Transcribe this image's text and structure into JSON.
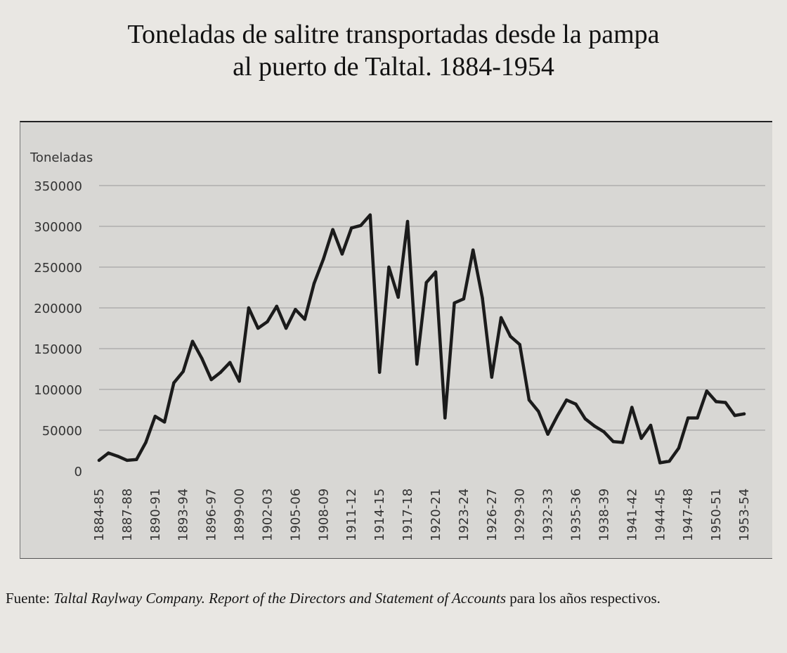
{
  "title": {
    "line1": "Toneladas de salitre transportadas desde la pampa",
    "line2": "al puerto de Taltal. 1884-1954"
  },
  "source": {
    "prefix": "Fuente:",
    "italic": "Taltal Raylway Company. Report of the Directors and Statement of Accounts",
    "suffix": "para los años respectivos."
  },
  "colors": {
    "line": "#1b1b1b",
    "plot_bg": "#d8d7d4",
    "grid": "#9a9a9a"
  },
  "chart_data": {
    "type": "line",
    "title": "Toneladas de salitre transportadas desde la pampa al puerto de Taltal. 1884-1954",
    "ylabel": "Toneladas",
    "xlabel": "",
    "ylim": [
      0,
      350000
    ],
    "yticks": [
      0,
      50000,
      100000,
      150000,
      200000,
      250000,
      300000,
      350000
    ],
    "ytick_labels": [
      "0",
      "50000",
      "100000",
      "150000",
      "200000",
      "250000",
      "300000",
      "350000"
    ],
    "grid": true,
    "xtick_labels": [
      "1884-85",
      "1887-88",
      "1890-91",
      "1893-94",
      "1896-97",
      "1899-00",
      "1902-03",
      "1905-06",
      "1908-09",
      "1911-12",
      "1914-15",
      "1917-18",
      "1920-21",
      "1923-24",
      "1926-27",
      "1929-30",
      "1932-33",
      "1935-36",
      "1938-39",
      "1941-42",
      "1944-45",
      "1947-48",
      "1950-51",
      "1953-54"
    ],
    "xtick_every": 3,
    "categories": [
      "1884-85",
      "1885-86",
      "1886-87",
      "1887-88",
      "1888-89",
      "1889-90",
      "1890-91",
      "1891-92",
      "1892-93",
      "1893-94",
      "1894-95",
      "1895-96",
      "1896-97",
      "1897-98",
      "1898-99",
      "1899-00",
      "1900-01",
      "1901-02",
      "1902-03",
      "1903-04",
      "1904-05",
      "1905-06",
      "1906-07",
      "1907-08",
      "1908-09",
      "1909-10",
      "1910-11",
      "1911-12",
      "1912-13",
      "1913-14",
      "1914-15",
      "1915-16",
      "1916-17",
      "1917-18",
      "1918-19",
      "1919-20",
      "1920-21",
      "1921-22",
      "1922-23",
      "1923-24",
      "1924-25",
      "1925-26",
      "1926-27",
      "1927-28",
      "1928-29",
      "1929-30",
      "1930-31",
      "1931-32",
      "1932-33",
      "1933-34",
      "1934-35",
      "1935-36",
      "1936-37",
      "1937-38",
      "1938-39",
      "1939-40",
      "1940-41",
      "1941-42",
      "1942-43",
      "1943-44",
      "1944-45",
      "1945-46",
      "1946-47",
      "1947-48",
      "1948-49",
      "1949-50",
      "1950-51",
      "1951-52",
      "1952-53",
      "1953-54"
    ],
    "series": [
      {
        "name": "Toneladas",
        "values": [
          13000,
          22000,
          18000,
          13000,
          14000,
          35000,
          67000,
          60000,
          108000,
          122000,
          159000,
          138000,
          112000,
          121000,
          133000,
          110000,
          200000,
          175000,
          183000,
          202000,
          175000,
          198000,
          186000,
          230000,
          260000,
          296000,
          266000,
          298000,
          301000,
          314000,
          121000,
          250000,
          213000,
          306000,
          131000,
          231000,
          244000,
          65000,
          206000,
          211000,
          271000,
          212000,
          115000,
          188000,
          165000,
          155000,
          87000,
          73000,
          45000,
          67000,
          87000,
          82000,
          64000,
          55000,
          48000,
          36000,
          35000,
          78000,
          40000,
          56000,
          10000,
          12000,
          28000,
          65000,
          65000,
          98000,
          85000,
          84000,
          68000,
          70000
        ]
      }
    ]
  }
}
